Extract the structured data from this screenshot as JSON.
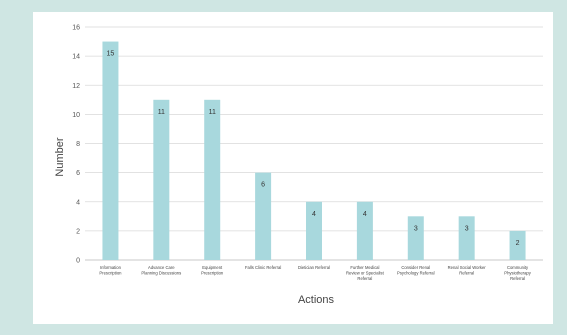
{
  "chart_data": {
    "type": "bar",
    "title": "",
    "xlabel": "Actions",
    "ylabel": "Number",
    "ylim": [
      0,
      16
    ],
    "yticks": [
      0,
      2,
      4,
      6,
      8,
      10,
      12,
      14,
      16
    ],
    "grid": true,
    "bar_color": "#a8d8dd",
    "categories": [
      [
        "Information",
        "Prescription"
      ],
      [
        "Advance Care",
        "Planning Discussions"
      ],
      [
        "Equipment",
        "Prescription"
      ],
      [
        "Falls Clinic Referral"
      ],
      [
        "Dietician Referral"
      ],
      [
        "Further Medical",
        "Review or Specialist",
        "Referral"
      ],
      [
        "Consider Renal",
        "Psychology Referral"
      ],
      [
        "Renal Social Worker",
        "Referral"
      ],
      [
        "Community",
        "Physiotherapy",
        "Referral"
      ]
    ],
    "values": [
      15,
      11,
      11,
      6,
      4,
      4,
      3,
      3,
      2
    ]
  }
}
